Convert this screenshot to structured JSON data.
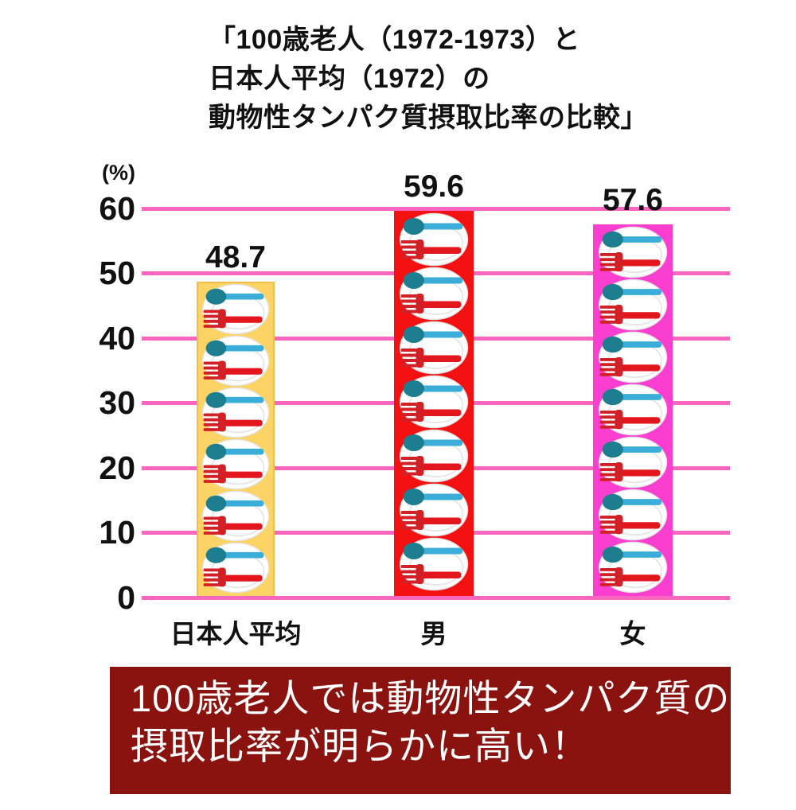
{
  "title": {
    "lines": [
      "「100歳老人（1972-1973）と",
      "日本人平均（1972）の",
      "動物性タンパク質摂取比率の比較」"
    ]
  },
  "chart_data": {
    "type": "bar",
    "title": "「100歳老人（1972-1973）と日本人平均（1972）の動物性タンパク質摂取比率の比較」",
    "categories": [
      "日本人平均",
      "男",
      "女"
    ],
    "values": [
      48.7,
      59.6,
      57.6
    ],
    "data_labels": [
      "48.7",
      "59.6",
      "57.6"
    ],
    "unit_label": "(%)",
    "xlabel": "",
    "ylabel": "(%)",
    "ylim": [
      0,
      60
    ],
    "y_ticks": [
      "0",
      "10",
      "20",
      "30",
      "40",
      "50",
      "60"
    ],
    "grid": "horizontal",
    "legend": "none",
    "gridline_color": "#f866c0",
    "bar_colors": [
      "#fcd466",
      "#f31111",
      "#fa3ecf"
    ],
    "bar_border_colors": [
      "#f3bd4a",
      "#f31111",
      "#fa3ecf"
    ],
    "icon": "plate-with-spoon-and-fork",
    "icon_counts_per_bar": [
      6,
      7,
      7
    ],
    "icon_colors": {
      "plate": "#ffffff",
      "plate_rim": "#e2e2e2",
      "spoon_bowl": "#1d7e90",
      "spoon_handle": "#3aaed8",
      "fork_head": "#d22027",
      "fork_handle": "#e3151d"
    }
  },
  "callout": {
    "lines": [
      "100歳老人では動物性タンパク質の",
      "摂取比率が明らかに高い！"
    ],
    "bg_color": "#8a1310",
    "text_color": "#ffffff"
  }
}
